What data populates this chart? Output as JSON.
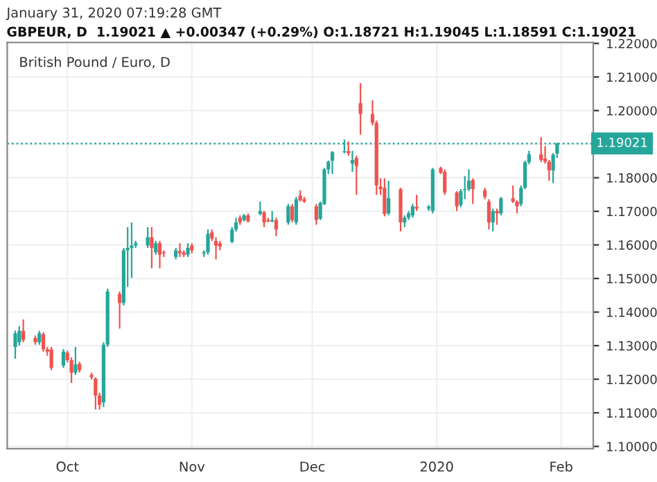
{
  "chart_data": {
    "type": "candlestick",
    "title": "British Pound / Euro, D",
    "subtitle": "GBPEUR, D  1.19021 ▲ +0.00347 (+0.29%) O:1.18721 H:1.19045 L:1.18591 C:1.19021",
    "annotations": [
      "January 31, 2020 07:19:28 GMT"
    ],
    "x": [
      "2019-09-18",
      "2019-09-19",
      "2019-09-20",
      "2019-09-23",
      "2019-09-24",
      "2019-09-25",
      "2019-09-26",
      "2019-09-27",
      "2019-09-30",
      "2019-10-01",
      "2019-10-02",
      "2019-10-03",
      "2019-10-04",
      "2019-10-07",
      "2019-10-08",
      "2019-10-09",
      "2019-10-10",
      "2019-10-11",
      "2019-10-14",
      "2019-10-15",
      "2019-10-16",
      "2019-10-17",
      "2019-10-18",
      "2019-10-21",
      "2019-10-22",
      "2019-10-23",
      "2019-10-24",
      "2019-10-25",
      "2019-10-28",
      "2019-10-29",
      "2019-10-30",
      "2019-10-31",
      "2019-11-01",
      "2019-11-04",
      "2019-11-05",
      "2019-11-06",
      "2019-11-07",
      "2019-11-08",
      "2019-11-11",
      "2019-11-12",
      "2019-11-13",
      "2019-11-14",
      "2019-11-15",
      "2019-11-18",
      "2019-11-19",
      "2019-11-20",
      "2019-11-21",
      "2019-11-22",
      "2019-11-25",
      "2019-11-26",
      "2019-11-27",
      "2019-11-28",
      "2019-11-29",
      "2019-12-02",
      "2019-12-03",
      "2019-12-04",
      "2019-12-05",
      "2019-12-06",
      "2019-12-09",
      "2019-12-10",
      "2019-12-11",
      "2019-12-12",
      "2019-12-13",
      "2019-12-16",
      "2019-12-17",
      "2019-12-18",
      "2019-12-19",
      "2019-12-20",
      "2019-12-23",
      "2019-12-24",
      "2019-12-25",
      "2019-12-26",
      "2019-12-27",
      "2019-12-30",
      "2019-12-31",
      "2020-01-02",
      "2020-01-03",
      "2020-01-06",
      "2020-01-07",
      "2020-01-08",
      "2020-01-09",
      "2020-01-10",
      "2020-01-13",
      "2020-01-14",
      "2020-01-15",
      "2020-01-16",
      "2020-01-17",
      "2020-01-20",
      "2020-01-21",
      "2020-01-22",
      "2020-01-23",
      "2020-01-24",
      "2020-01-27",
      "2020-01-28",
      "2020-01-29",
      "2020-01-30",
      "2020-01-31"
    ],
    "ohlc": [
      [
        1.1296,
        1.1345,
        1.1261,
        1.1337
      ],
      [
        1.131,
        1.1358,
        1.13,
        1.1344
      ],
      [
        1.1344,
        1.1378,
        1.131,
        1.1317
      ],
      [
        1.1323,
        1.133,
        1.1303,
        1.131
      ],
      [
        1.131,
        1.1344,
        1.1303,
        1.1337
      ],
      [
        1.1334,
        1.134,
        1.1282,
        1.1289
      ],
      [
        1.1289,
        1.1296,
        1.127,
        1.1282
      ],
      [
        1.1289,
        1.1296,
        1.1227,
        1.1234
      ],
      [
        1.1241,
        1.129,
        1.1234,
        1.1282
      ],
      [
        1.1279,
        1.1285,
        1.125,
        1.1257
      ],
      [
        1.1257,
        1.1265,
        1.1189,
        1.122
      ],
      [
        1.122,
        1.1296,
        1.1213,
        1.1244
      ],
      [
        1.1246,
        1.1252,
        1.122,
        1.1227
      ],
      [
        1.1213,
        1.122,
        1.1199,
        1.1206
      ],
      [
        1.1202,
        1.1206,
        1.111,
        1.1152
      ],
      [
        1.1152,
        1.116,
        1.111,
        1.1124
      ],
      [
        1.1131,
        1.131,
        1.1117,
        1.1303
      ],
      [
        1.1303,
        1.147,
        1.1296,
        1.1461
      ],
      [
        1.1454,
        1.1461,
        1.1351,
        1.1427
      ],
      [
        1.1427,
        1.1591,
        1.142,
        1.1584
      ],
      [
        1.1584,
        1.1653,
        1.1475,
        1.1591
      ],
      [
        1.1591,
        1.1667,
        1.1502,
        1.1598
      ],
      [
        1.1598,
        1.1612,
        1.1591,
        1.1605
      ],
      [
        1.1598,
        1.1653,
        1.1591,
        1.1623
      ],
      [
        1.1623,
        1.1653,
        1.153,
        1.1591
      ],
      [
        1.1578,
        1.1612,
        1.1571,
        1.1605
      ],
      [
        1.1605,
        1.1612,
        1.153,
        1.1571
      ],
      [
        1.1578,
        1.1584,
        1.1564,
        1.1575
      ],
      [
        1.1564,
        1.1591,
        1.1557,
        1.1584
      ],
      [
        1.1582,
        1.1605,
        1.1564,
        1.1575
      ],
      [
        1.1578,
        1.1584,
        1.1564,
        1.1571
      ],
      [
        1.1571,
        1.1605,
        1.1564,
        1.1591
      ],
      [
        1.1598,
        1.1605,
        1.1575,
        1.1584
      ],
      [
        1.1574,
        1.1584,
        1.1564,
        1.1578
      ],
      [
        1.1578,
        1.1646,
        1.1571,
        1.1633
      ],
      [
        1.1637,
        1.1646,
        1.1612,
        1.1619
      ],
      [
        1.1612,
        1.1623,
        1.1557,
        1.1598
      ],
      [
        1.1605,
        1.1612,
        1.1584,
        1.1595
      ],
      [
        1.1609,
        1.1653,
        1.1605,
        1.1646
      ],
      [
        1.1646,
        1.1681,
        1.164,
        1.1667
      ],
      [
        1.1681,
        1.1688,
        1.166,
        1.1667
      ],
      [
        1.1674,
        1.1692,
        1.167,
        1.1688
      ],
      [
        1.1688,
        1.1694,
        1.1667,
        1.167
      ],
      [
        1.1692,
        1.1729,
        1.1688,
        1.1701
      ],
      [
        1.1697,
        1.1701,
        1.1653,
        1.1667
      ],
      [
        1.1674,
        1.1681,
        1.1667,
        1.167
      ],
      [
        1.167,
        1.1701,
        1.1667,
        1.1674
      ],
      [
        1.1674,
        1.1681,
        1.1626,
        1.1646
      ],
      [
        1.1667,
        1.1722,
        1.166,
        1.1715
      ],
      [
        1.1715,
        1.1722,
        1.1667,
        1.1674
      ],
      [
        1.1667,
        1.1743,
        1.166,
        1.1736
      ],
      [
        1.1747,
        1.1763,
        1.1729,
        1.1733
      ],
      [
        1.1736,
        1.1743,
        1.1725,
        1.1729
      ],
      [
        1.1715,
        1.1722,
        1.166,
        1.1674
      ],
      [
        1.1678,
        1.1729,
        1.1674,
        1.1725
      ],
      [
        1.1722,
        1.1829,
        1.1719,
        1.1825
      ],
      [
        1.1825,
        1.1851,
        1.1811,
        1.1848
      ],
      [
        1.1851,
        1.1879,
        1.1811,
        1.1876
      ],
      [
        1.1876,
        1.1914,
        1.1873,
        1.1879
      ],
      [
        1.1879,
        1.1908,
        1.1866,
        1.1873
      ],
      [
        1.1842,
        1.188,
        1.1818,
        1.1853
      ],
      [
        1.1859,
        1.1866,
        1.1749,
        1.1835
      ],
      [
        1.2022,
        1.2082,
        1.1928,
        1.199
      ],
      [
        1.199,
        1.2031,
        1.1956,
        1.1963
      ],
      [
        1.1963,
        1.197,
        1.1749,
        1.1777
      ],
      [
        1.1774,
        1.1798,
        1.1749,
        1.1766
      ],
      [
        1.177,
        1.1798,
        1.1685,
        1.1692
      ],
      [
        1.1694,
        1.1791,
        1.1688,
        1.1739
      ],
      [
        1.1766,
        1.177,
        1.164,
        1.1667
      ],
      [
        1.1667,
        1.1688,
        1.1653,
        1.1681
      ],
      [
        1.1681,
        1.1701,
        1.1674,
        1.1694
      ],
      [
        1.1688,
        1.1722,
        1.1681,
        1.1715
      ],
      [
        1.1714,
        1.1749,
        1.1701,
        1.1708
      ],
      [
        1.1708,
        1.1719,
        1.1701,
        1.1714
      ],
      [
        1.1701,
        1.1829,
        1.1694,
        1.1825
      ],
      [
        1.1829,
        1.1833,
        1.1811,
        1.1815
      ],
      [
        1.1818,
        1.1825,
        1.1749,
        1.1756
      ],
      [
        1.1756,
        1.176,
        1.1701,
        1.1715
      ],
      [
        1.1719,
        1.1766,
        1.1712,
        1.176
      ],
      [
        1.1763,
        1.1805,
        1.1736,
        1.1766
      ],
      [
        1.1766,
        1.1825,
        1.176,
        1.1791
      ],
      [
        1.1793,
        1.1798,
        1.1722,
        1.1766
      ],
      [
        1.1763,
        1.177,
        1.1736,
        1.1743
      ],
      [
        1.1729,
        1.1736,
        1.1646,
        1.1667
      ],
      [
        1.1667,
        1.1708,
        1.164,
        1.1701
      ],
      [
        1.1701,
        1.1708,
        1.166,
        1.1694
      ],
      [
        1.1694,
        1.1743,
        1.1688,
        1.1739
      ],
      [
        1.1739,
        1.1777,
        1.1725,
        1.1729
      ],
      [
        1.1729,
        1.1733,
        1.1694,
        1.1715
      ],
      [
        1.1722,
        1.1777,
        1.1715,
        1.177
      ],
      [
        1.177,
        1.1851,
        1.1766,
        1.1846
      ],
      [
        1.1846,
        1.188,
        1.184,
        1.187
      ],
      [
        1.187,
        1.1921,
        1.1846,
        1.1853
      ],
      [
        1.1857,
        1.1894,
        1.1842,
        1.1848
      ],
      [
        1.1848,
        1.1853,
        1.1791,
        1.1822
      ],
      [
        1.1822,
        1.1873,
        1.1784,
        1.1869
      ],
      [
        1.18721,
        1.19045,
        1.18591,
        1.19021
      ]
    ],
    "xlim": [
      "2019-09-16",
      "2020-02-09"
    ],
    "xticks": [
      {
        "value": "2019-10-01",
        "label": "Oct"
      },
      {
        "value": "2019-11-01",
        "label": "Nov"
      },
      {
        "value": "2019-12-01",
        "label": "Dec"
      },
      {
        "value": "2020-01-01",
        "label": "2020"
      },
      {
        "value": "2020-02-01",
        "label": "Feb"
      }
    ],
    "ylim": [
      1.0993,
      1.2203
    ],
    "yticks": [
      {
        "value": 1.1,
        "label": "1.10000"
      },
      {
        "value": 1.11,
        "label": "1.11000"
      },
      {
        "value": 1.12,
        "label": "1.12000"
      },
      {
        "value": 1.13,
        "label": "1.13000"
      },
      {
        "value": 1.14,
        "label": "1.14000"
      },
      {
        "value": 1.15,
        "label": "1.15000"
      },
      {
        "value": 1.16,
        "label": "1.16000"
      },
      {
        "value": 1.17,
        "label": "1.17000"
      },
      {
        "value": 1.18,
        "label": "1.18000"
      },
      {
        "value": 1.19,
        "label": null
      },
      {
        "value": 1.2,
        "label": "1.20000"
      },
      {
        "value": 1.21,
        "label": "1.21000"
      },
      {
        "value": 1.22,
        "label": "1.22000"
      }
    ],
    "ref_lines": [
      {
        "axis": "y",
        "value": 1.19021,
        "label": "1.19021",
        "color": "#26a69a",
        "line_style": "dotted"
      }
    ],
    "grid": true
  }
}
